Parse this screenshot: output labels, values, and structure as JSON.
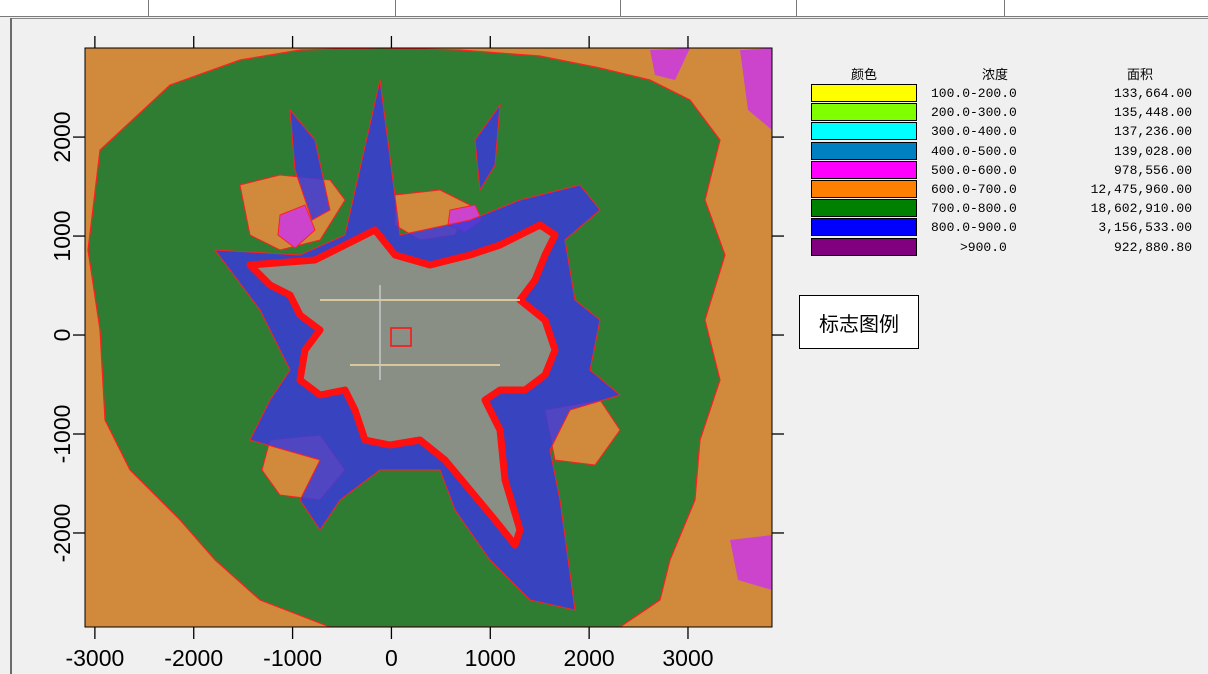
{
  "legend": {
    "headers": {
      "color": "颜色",
      "concentration": "浓度",
      "area": "面积"
    },
    "rows": [
      {
        "range": "100.0-200.0",
        "area": "133,664.00",
        "color": "#ffff00"
      },
      {
        "range": "200.0-300.0",
        "area": "135,448.00",
        "color": "#80ff00"
      },
      {
        "range": "300.0-400.0",
        "area": "137,236.00",
        "color": "#00ffff"
      },
      {
        "range": "400.0-500.0",
        "area": "139,028.00",
        "color": "#0080c0"
      },
      {
        "range": "500.0-600.0",
        "area": "978,556.00",
        "color": "#ff00ff"
      },
      {
        "range": "600.0-700.0",
        "area": "12,475,960.00",
        "color": "#ff8000"
      },
      {
        "range": "700.0-800.0",
        "area": "18,602,910.00",
        "color": "#008000"
      },
      {
        "range": "800.0-900.0",
        "area": "3,156,533.00",
        "color": "#0000ff"
      },
      {
        "range": ">900.0",
        "area": "922,880.80",
        "color": "#800080"
      }
    ]
  },
  "legend_button": {
    "label": "标志图例"
  },
  "axes": {
    "x_ticks": [
      "-3000",
      "-2000",
      "-1000",
      "0",
      "1000",
      "2000",
      "3000"
    ],
    "y_ticks": [
      "2000",
      "1000",
      "0",
      "-1000",
      "-2000"
    ],
    "x_range": [
      -3100,
      3850
    ],
    "y_range": [
      -2950,
      2900
    ]
  },
  "colors": {
    "background": "#f0f0f0",
    "contour_line": "#ff0000",
    "urban_core": "#8a8f86"
  }
}
